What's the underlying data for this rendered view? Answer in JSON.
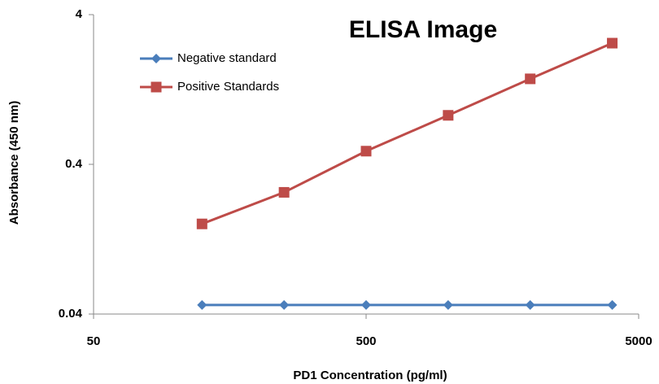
{
  "chart_data": {
    "type": "line",
    "title": "ELISA Image",
    "x_label": "PD1 Concentration (pg/ml)",
    "y_label": "Absorbance (450 nm)",
    "x": [
      125,
      250,
      500,
      1000,
      2000,
      4000
    ],
    "series": [
      {
        "name": "Negative standard",
        "color": "#4a7ebb",
        "marker": "diamond",
        "values": [
          0.046,
          0.046,
          0.046,
          0.046,
          0.046,
          0.046
        ]
      },
      {
        "name": "Positive Standards",
        "color": "#be4b48",
        "marker": "square",
        "values": [
          0.16,
          0.26,
          0.49,
          0.85,
          1.49,
          2.58
        ]
      }
    ],
    "xlim": [
      50,
      5000
    ],
    "xticks": [
      50,
      500,
      5000
    ],
    "xscale": "log",
    "ylim": [
      0.04,
      4
    ],
    "yticks": [
      0.04,
      0.4,
      4
    ],
    "yscale": "log",
    "legend": "upper left"
  }
}
